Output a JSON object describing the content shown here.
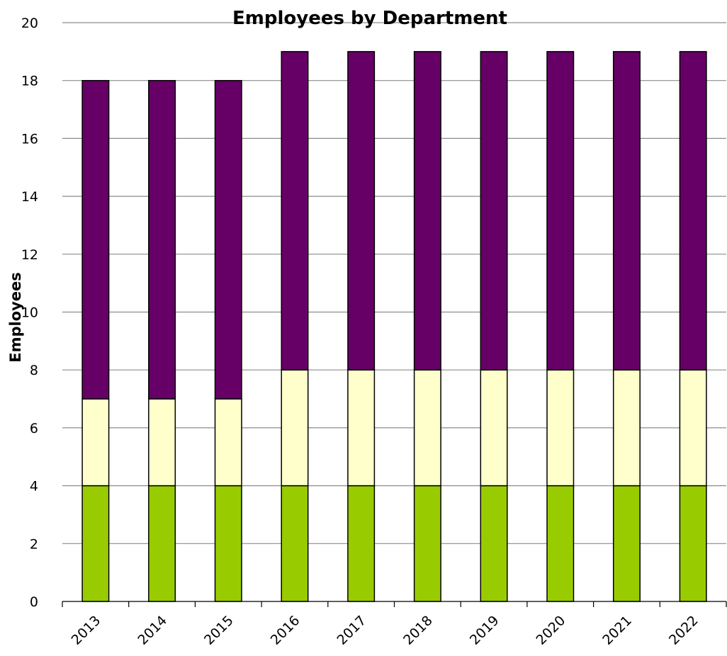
{
  "chart_data": {
    "type": "bar",
    "stacked": true,
    "title": "Employees by Department",
    "xlabel": "",
    "ylabel": "Employees",
    "ylim": [
      0,
      20
    ],
    "yticks": [
      0,
      2,
      4,
      6,
      8,
      10,
      12,
      14,
      16,
      18,
      20
    ],
    "grid": true,
    "categories": [
      "2013",
      "2014",
      "2015",
      "2016",
      "2017",
      "2018",
      "2019",
      "2020",
      "2021",
      "2022"
    ],
    "series": [
      {
        "color": "#99cc00",
        "values": [
          4,
          4,
          4,
          4,
          4,
          4,
          4,
          4,
          4,
          4
        ]
      },
      {
        "color": "#ffffcc",
        "values": [
          3,
          3,
          3,
          4,
          4,
          4,
          4,
          4,
          4,
          4
        ]
      },
      {
        "color": "#660066",
        "values": [
          11,
          11,
          11,
          11,
          11,
          11,
          11,
          11,
          11,
          11
        ]
      }
    ]
  }
}
